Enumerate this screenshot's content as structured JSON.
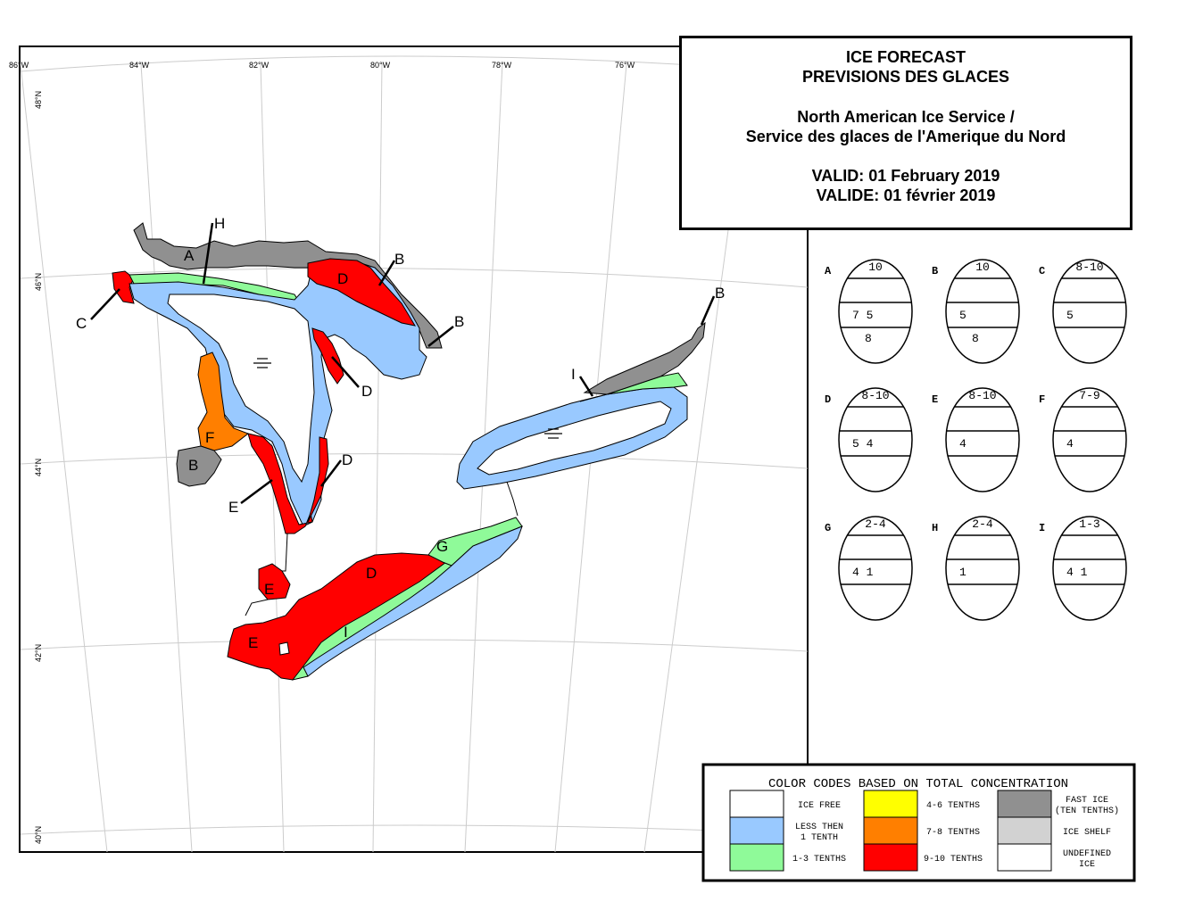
{
  "title": {
    "line1": "ICE FORECAST",
    "line2": "PREVISIONS DES GLACES",
    "line3": "North American Ice Service /",
    "line4": "Service des glaces de l'Amerique du Nord",
    "line5": "VALID: 01 February 2019",
    "line6": "VALIDE: 01 février 2019"
  },
  "graticule": {
    "longitudes": [
      "86°W",
      "84°W",
      "82°W",
      "80°W",
      "78°W",
      "76°W"
    ],
    "latitudes": [
      "48°N",
      "46°N",
      "44°N",
      "42°N",
      "40°N"
    ]
  },
  "map_labels": {
    "A": "A",
    "B1": "B",
    "B2": "B",
    "B3": "B",
    "B4": "B",
    "C": "C",
    "D1": "D",
    "D2": "D",
    "D3": "D",
    "D4": "D",
    "E1": "E",
    "E2": "E",
    "E3": "E",
    "F": "F",
    "G": "G",
    "H": "H",
    "I1": "I",
    "I2": "I"
  },
  "egg_codes": [
    {
      "id": "A",
      "total": "10",
      "partial": "7 5",
      "stage": "8"
    },
    {
      "id": "B",
      "total": "10",
      "partial": "5",
      "stage": "8"
    },
    {
      "id": "C",
      "total": "8-10",
      "partial": "5",
      "stage": ""
    },
    {
      "id": "D",
      "total": "8-10",
      "partial": "5 4",
      "stage": ""
    },
    {
      "id": "E",
      "total": "8-10",
      "partial": "4",
      "stage": ""
    },
    {
      "id": "F",
      "total": "7-9",
      "partial": "4",
      "stage": ""
    },
    {
      "id": "G",
      "total": "2-4",
      "partial": "4 1",
      "stage": ""
    },
    {
      "id": "H",
      "total": "2-4",
      "partial": "1",
      "stage": ""
    },
    {
      "id": "I",
      "total": "1-3",
      "partial": "4 1",
      "stage": ""
    }
  ],
  "legend": {
    "title": "COLOR CODES BASED ON TOTAL CONCENTRATION",
    "items": [
      {
        "color": "#ffffff",
        "label1": "ICE FREE",
        "label2": ""
      },
      {
        "color": "#99c9ff",
        "label1": "LESS THEN",
        "label2": "1 TENTH"
      },
      {
        "color": "#8ffa99",
        "label1": "1-3 TENTHS",
        "label2": ""
      },
      {
        "color": "#ffff00",
        "label1": "4-6 TENTHS",
        "label2": ""
      },
      {
        "color": "#ff7f00",
        "label1": "7-8 TENTHS",
        "label2": ""
      },
      {
        "color": "#ff0000",
        "label1": "9-10 TENTHS",
        "label2": ""
      },
      {
        "color": "#909090",
        "label1": "FAST ICE",
        "label2": "(TEN TENTHS)"
      },
      {
        "color": "#d2d2d2",
        "label1": "ICE SHELF",
        "label2": ""
      },
      {
        "color": "#ffffff",
        "label1": "UNDEFINED",
        "label2": "ICE"
      }
    ]
  }
}
